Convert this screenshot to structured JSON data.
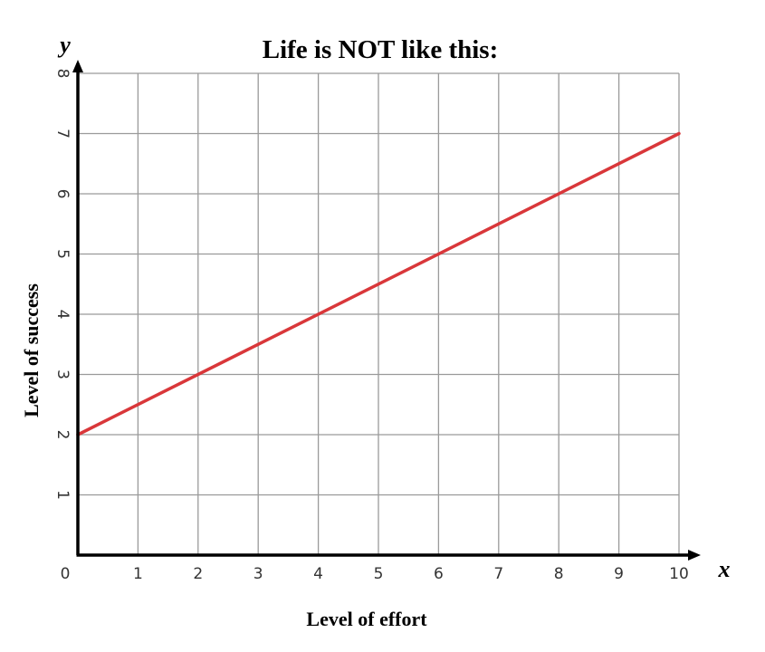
{
  "chart_data": {
    "type": "line",
    "title": "Life is NOT like this:",
    "xlabel": "Level of effort",
    "ylabel": "Level of success",
    "x_axis_symbol": "x",
    "y_axis_symbol": "y",
    "xlim": [
      0,
      10
    ],
    "ylim": [
      0,
      8
    ],
    "x_ticks": [
      "0",
      "1",
      "2",
      "3",
      "4",
      "5",
      "6",
      "7",
      "8",
      "9",
      "10"
    ],
    "y_ticks": [
      "1",
      "2",
      "3",
      "4",
      "5",
      "6",
      "7",
      "8"
    ],
    "grid": true,
    "series": [
      {
        "color": "#d9373a",
        "x": [
          0,
          10
        ],
        "y": [
          2,
          7
        ]
      }
    ]
  },
  "colors": {
    "grid": "#9a9a9a",
    "axis": "#000000",
    "line": "#d9373a"
  }
}
